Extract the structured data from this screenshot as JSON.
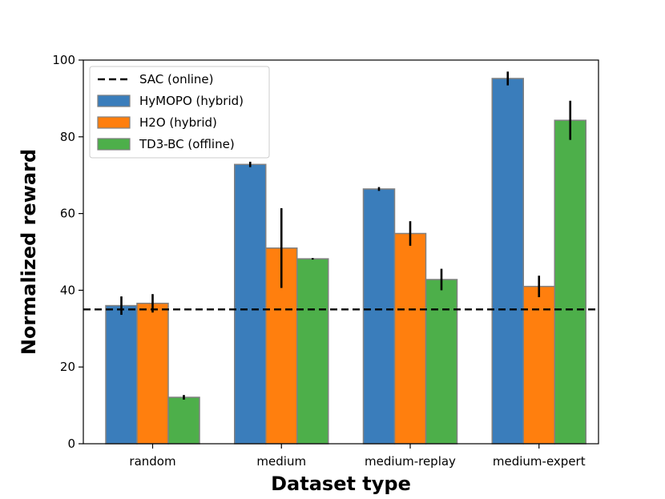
{
  "chart_data": {
    "type": "bar",
    "title": "",
    "xlabel": "Dataset type",
    "ylabel": "Normalized reward",
    "ylim": [
      0,
      100
    ],
    "yticks": [
      0,
      20,
      40,
      60,
      80,
      100
    ],
    "categories": [
      "random",
      "medium",
      "medium-replay",
      "medium-expert"
    ],
    "series": [
      {
        "name": "HyMOPO (hybrid)",
        "color": "#3a7dbb",
        "values": [
          36.0,
          72.8,
          66.4,
          95.2
        ],
        "errors": [
          2.4,
          0.7,
          0.5,
          1.8
        ]
      },
      {
        "name": "H2O (hybrid)",
        "color": "#ff7f0e",
        "values": [
          36.6,
          51.0,
          54.8,
          41.0
        ],
        "errors": [
          2.4,
          10.4,
          3.2,
          2.8
        ]
      },
      {
        "name": "TD3-BC (offline)",
        "color": "#4daf4a",
        "values": [
          12.1,
          48.2,
          42.8,
          84.3
        ],
        "errors": [
          0.6,
          0.2,
          2.8,
          5.1
        ]
      }
    ],
    "reference_line": {
      "name": "SAC (online)",
      "value": 35.0,
      "style": "dashed",
      "color": "#000000"
    },
    "legend": {
      "placement": "top-left",
      "entries": [
        "SAC (online)",
        "HyMOPO (hybrid)",
        "H2O (hybrid)",
        "TD3-BC (offline)"
      ]
    },
    "grid": false
  }
}
